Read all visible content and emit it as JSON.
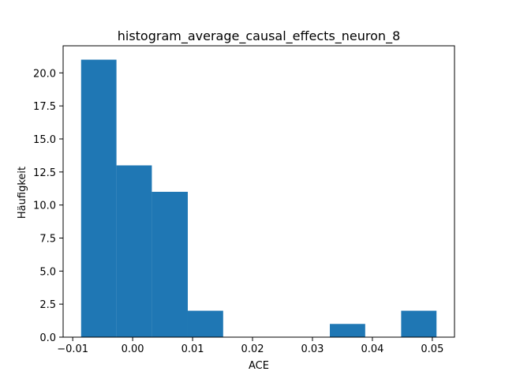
{
  "chart_data": {
    "type": "bar",
    "title": "histogram_average_causal_effects_neuron_8",
    "xlabel": "ACE",
    "ylabel": "Häufigkeit",
    "bar_color": "#1f77b4",
    "xlim": [
      -0.0116,
      0.0537
    ],
    "ylim": [
      0,
      22.05
    ],
    "xticks": [
      -0.01,
      0.0,
      0.01,
      0.02,
      0.03,
      0.04,
      0.05
    ],
    "xtick_labels": [
      "−0.01",
      "0.00",
      "0.01",
      "0.02",
      "0.03",
      "0.04",
      "0.05"
    ],
    "yticks": [
      0,
      2.5,
      5,
      7.5,
      10,
      12.5,
      15,
      17.5,
      20
    ],
    "ytick_labels": [
      "0.0",
      "2.5",
      "5.0",
      "7.5",
      "10.0",
      "12.5",
      "15.0",
      "17.5",
      "20.0"
    ],
    "bins": [
      {
        "start": -0.0086,
        "end": -0.0027,
        "count": 21
      },
      {
        "start": -0.0027,
        "end": 0.0032,
        "count": 13
      },
      {
        "start": 0.0032,
        "end": 0.0092,
        "count": 11
      },
      {
        "start": 0.0092,
        "end": 0.0151,
        "count": 2
      },
      {
        "start": 0.0151,
        "end": 0.021,
        "count": 0
      },
      {
        "start": 0.021,
        "end": 0.027,
        "count": 0
      },
      {
        "start": 0.027,
        "end": 0.0329,
        "count": 0
      },
      {
        "start": 0.0329,
        "end": 0.0388,
        "count": 1
      },
      {
        "start": 0.0388,
        "end": 0.0448,
        "count": 0
      },
      {
        "start": 0.0448,
        "end": 0.0507,
        "count": 2
      }
    ]
  }
}
